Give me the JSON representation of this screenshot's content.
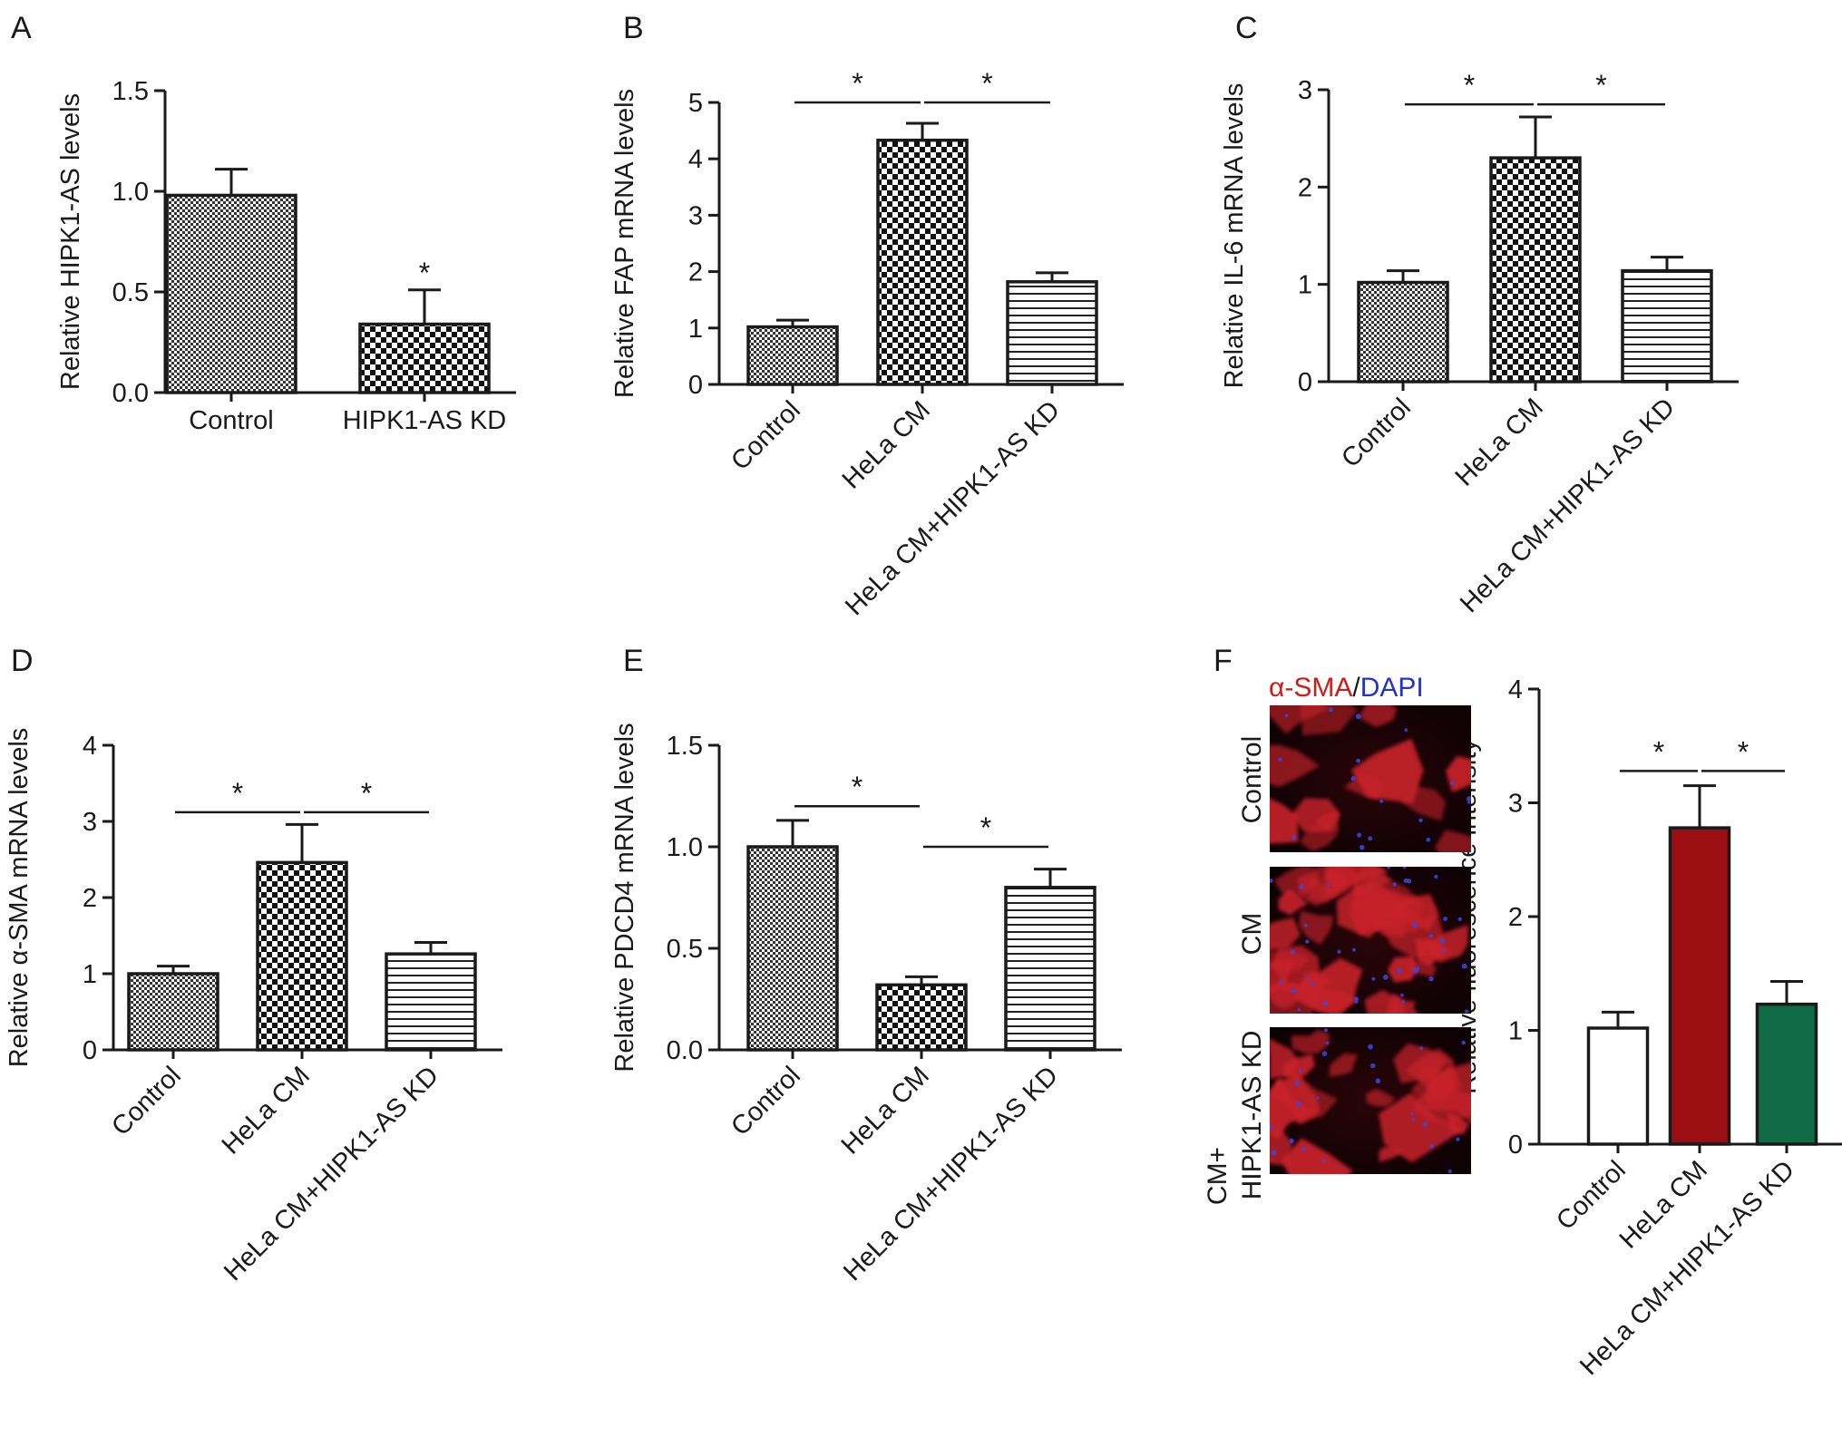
{
  "colors": {
    "ink": "#1a1a1a",
    "red_stain": "#d01b1b",
    "blue_stain": "#2233cc",
    "bar_red": "#9b0f12",
    "bar_green": "#0e6b45"
  },
  "chart_data": [
    {
      "panel": "A",
      "type": "bar",
      "categories": [
        "Control",
        "HIPK1-AS KD"
      ],
      "values": [
        0.98,
        0.34
      ],
      "errors": [
        0.13,
        0.17
      ],
      "patterns": [
        "fine-check",
        "check"
      ],
      "ylabel": "Relative HIPK1-AS levels",
      "ylim": [
        0,
        1.5
      ],
      "yticks": [
        "0.0",
        "0.5",
        "1.0",
        "1.5"
      ],
      "ytick_values": [
        0,
        0.5,
        1.0,
        1.5
      ],
      "xtick_rotation": 0,
      "significance": [
        {
          "label": "*",
          "over": [
            1,
            1
          ],
          "bracket": false
        }
      ]
    },
    {
      "panel": "B",
      "type": "bar",
      "categories": [
        "Control",
        "HeLa CM",
        "HeLa CM+HIPK1-AS KD"
      ],
      "values": [
        1.02,
        4.33,
        1.82
      ],
      "errors": [
        0.12,
        0.3,
        0.16
      ],
      "patterns": [
        "fine-check",
        "check",
        "hlines"
      ],
      "ylabel": "Relative FAP mRNA levels",
      "ylim": [
        0,
        5
      ],
      "yticks": [
        "0",
        "1",
        "2",
        "3",
        "4",
        "5"
      ],
      "ytick_values": [
        0,
        1,
        2,
        3,
        4,
        5
      ],
      "xtick_rotation": -45,
      "significance": [
        {
          "label": "*",
          "over": [
            0,
            1
          ],
          "bracket": true,
          "y": 5.0
        },
        {
          "label": "*",
          "over": [
            1,
            2
          ],
          "bracket": true,
          "y": 5.0
        }
      ]
    },
    {
      "panel": "C",
      "type": "bar",
      "categories": [
        "Control",
        "HeLa CM",
        "HeLa CM+HIPK1-AS KD"
      ],
      "values": [
        1.02,
        2.3,
        1.14
      ],
      "errors": [
        0.12,
        0.42,
        0.14
      ],
      "patterns": [
        "fine-check",
        "check",
        "hlines"
      ],
      "ylabel": "Relative IL-6 mRNA levels",
      "ylim": [
        0,
        3
      ],
      "yticks": [
        "0",
        "1",
        "2",
        "3"
      ],
      "ytick_values": [
        0,
        1,
        2,
        3
      ],
      "xtick_rotation": -45,
      "significance": [
        {
          "label": "*",
          "over": [
            0,
            1
          ],
          "bracket": true,
          "y": 2.85
        },
        {
          "label": "*",
          "over": [
            1,
            2
          ],
          "bracket": true,
          "y": 2.85
        }
      ]
    },
    {
      "panel": "D",
      "type": "bar",
      "categories": [
        "Control",
        "HeLa CM",
        "HeLa CM+HIPK1-AS KD"
      ],
      "values": [
        1.0,
        2.46,
        1.26
      ],
      "errors": [
        0.1,
        0.5,
        0.15
      ],
      "patterns": [
        "fine-check",
        "check",
        "hlines"
      ],
      "ylabel": "Relative α-SMA mRNA levels",
      "ylim": [
        0,
        4
      ],
      "yticks": [
        "0",
        "1",
        "2",
        "3",
        "4"
      ],
      "ytick_values": [
        0,
        1,
        2,
        3,
        4
      ],
      "xtick_rotation": -45,
      "significance": [
        {
          "label": "*",
          "over": [
            0,
            1
          ],
          "bracket": true,
          "y": 3.12
        },
        {
          "label": "*",
          "over": [
            1,
            2
          ],
          "bracket": true,
          "y": 3.12
        }
      ]
    },
    {
      "panel": "E",
      "type": "bar",
      "categories": [
        "Control",
        "HeLa CM",
        "HeLa CM+HIPK1-AS KD"
      ],
      "values": [
        1.0,
        0.32,
        0.8
      ],
      "errors": [
        0.13,
        0.04,
        0.09
      ],
      "patterns": [
        "fine-check",
        "check",
        "hlines"
      ],
      "ylabel": "Relative PDCD4 mRNA levels",
      "ylim": [
        0,
        1.5
      ],
      "yticks": [
        "0.0",
        "0.5",
        "1.0",
        "1.5"
      ],
      "ytick_values": [
        0,
        0.5,
        1.0,
        1.5
      ],
      "xtick_rotation": -45,
      "significance": [
        {
          "label": "*",
          "over": [
            0,
            1
          ],
          "bracket": true,
          "y": 1.2
        },
        {
          "label": "*",
          "over": [
            1,
            2
          ],
          "bracket": true,
          "y": 1.0
        }
      ]
    },
    {
      "panel": "F",
      "type": "bar",
      "categories": [
        "Control",
        "HeLa CM",
        "HeLa CM+HIPK1-AS KD"
      ],
      "values": [
        1.02,
        2.78,
        1.23
      ],
      "errors": [
        0.14,
        0.37,
        0.2
      ],
      "fill_colors": [
        "#ffffff",
        "#9b0f12",
        "#0e6b45"
      ],
      "ylabel": "Relative fluorescence intensity",
      "ylim": [
        0,
        4
      ],
      "yticks": [
        "0",
        "1",
        "2",
        "3",
        "4"
      ],
      "ytick_values": [
        0,
        1,
        2,
        3,
        4
      ],
      "xtick_rotation": -45,
      "significance": [
        {
          "label": "*",
          "over": [
            0,
            1
          ],
          "bracket": true,
          "y": 3.28
        },
        {
          "label": "*",
          "over": [
            1,
            2
          ],
          "bracket": true,
          "y": 3.28
        }
      ]
    }
  ],
  "panel_f_images": {
    "stain_title_1": "α-SMA",
    "stain_title_sep": "/",
    "stain_title_2": "DAPI",
    "row_labels": [
      "Control",
      "CM",
      "CM+",
      "HIPK1-AS KD"
    ]
  }
}
